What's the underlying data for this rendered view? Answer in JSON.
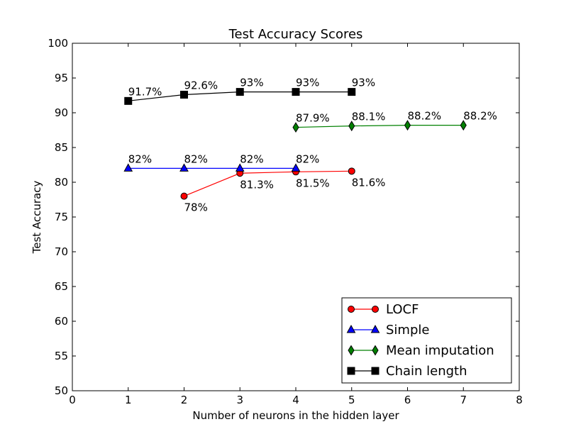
{
  "chart_data": {
    "type": "line",
    "title": "Test Accuracy Scores",
    "xlabel": "Number of neurons in the hidden layer",
    "ylabel": "Test Accuracy",
    "xlim": [
      0,
      8
    ],
    "ylim": [
      50,
      100
    ],
    "xticks": [
      0,
      1,
      2,
      3,
      4,
      5,
      6,
      7,
      8
    ],
    "yticks": [
      50,
      55,
      60,
      65,
      70,
      75,
      80,
      85,
      90,
      95,
      100
    ],
    "grid": false,
    "legend": "lower-right",
    "series": [
      {
        "name": "LOCF",
        "color": "#ff0000",
        "marker": "circle",
        "x": [
          2,
          3,
          4,
          5
        ],
        "y": [
          78.0,
          81.3,
          81.5,
          81.6
        ],
        "labels": [
          "78%",
          "81.3%",
          "81.5%",
          "81.6%"
        ],
        "label_position": "below"
      },
      {
        "name": "Simple",
        "color": "#0000ff",
        "marker": "triangle",
        "x": [
          1,
          2,
          3,
          4
        ],
        "y": [
          82,
          82,
          82,
          82
        ],
        "labels": [
          "82%",
          "82%",
          "82%",
          "82%"
        ],
        "label_position": "above"
      },
      {
        "name": "Mean imputation",
        "color": "#008000",
        "marker": "diamond",
        "x": [
          4,
          5,
          6,
          7
        ],
        "y": [
          87.9,
          88.1,
          88.2,
          88.2
        ],
        "labels": [
          "87.9%",
          "88.1%",
          "88.2%",
          "88.2%"
        ],
        "label_position": "above"
      },
      {
        "name": "Chain length",
        "color": "#000000",
        "marker": "square",
        "x": [
          1,
          2,
          3,
          4,
          5
        ],
        "y": [
          91.7,
          92.6,
          93,
          93,
          93
        ],
        "labels": [
          "91.7%",
          "92.6%",
          "93%",
          "93%",
          "93%"
        ],
        "label_position": "above"
      }
    ]
  }
}
